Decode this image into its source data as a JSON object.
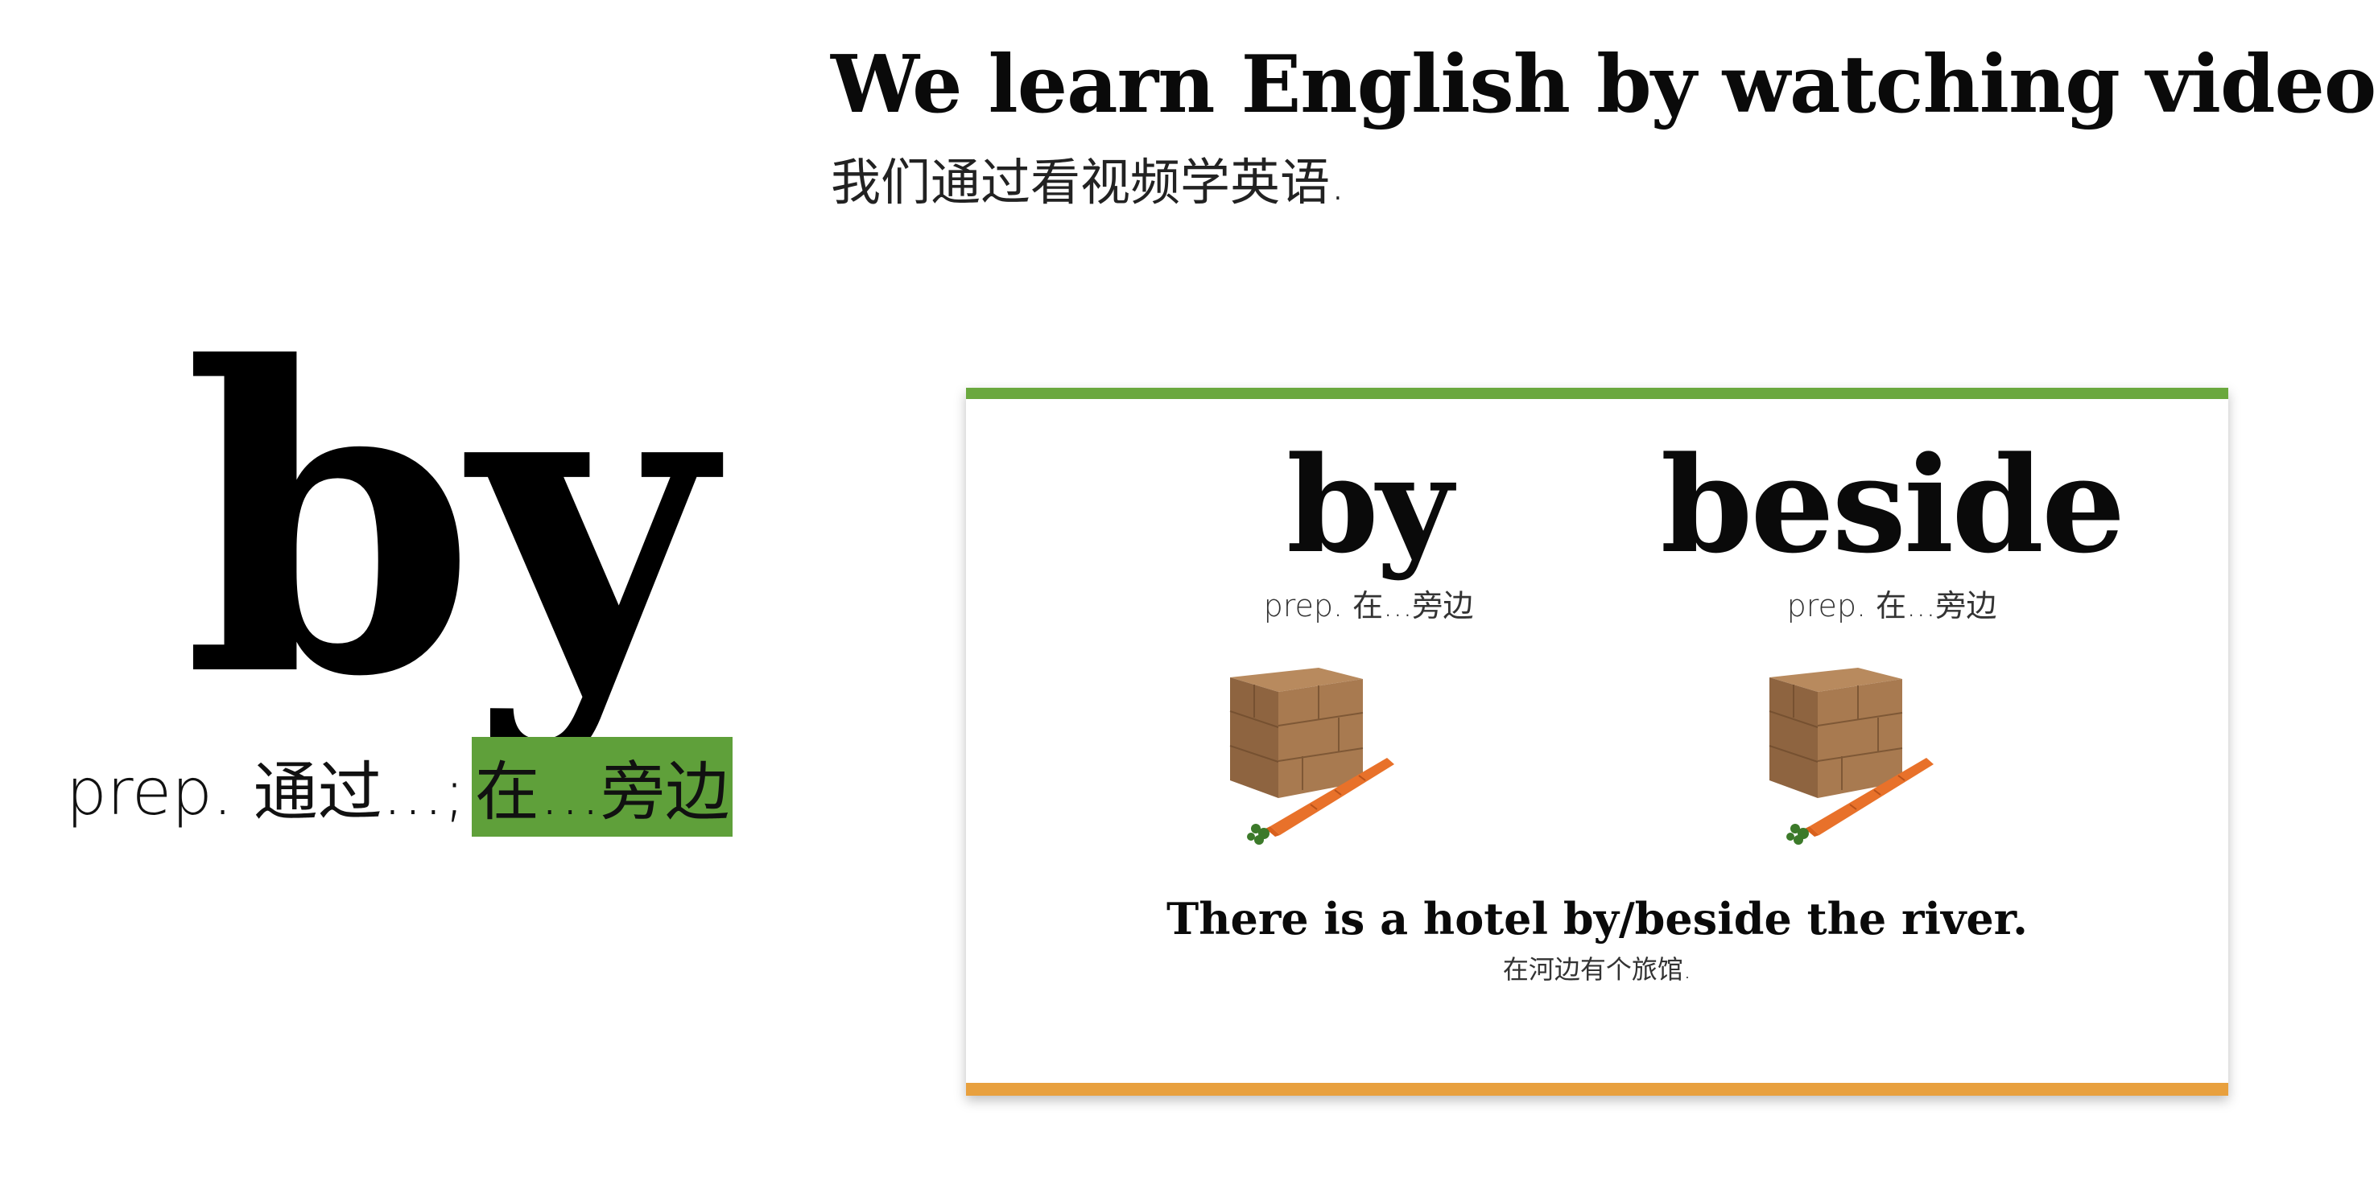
{
  "header": {
    "sentence_en": "We learn English by watching videos.",
    "sentence_zh": "我们通过看视频学英语."
  },
  "main_word": {
    "word": "by",
    "definition_prefix": "prep. 通过...;",
    "definition_highlight": "在...旁边",
    "highlight_color": "#5fa03a"
  },
  "card": {
    "top_bar_color": "#6aa83e",
    "bottom_bar_color": "#e8a03e",
    "left": {
      "word": "by",
      "pos": "prep. 在...旁边",
      "illustration": "box-with-carrot-illustration"
    },
    "right": {
      "word": "beside",
      "pos": "prep. 在...旁边",
      "illustration": "box-with-carrot-illustration"
    },
    "example_en": "There is a hotel by/beside the river.",
    "example_zh": "在河边有个旅馆."
  }
}
